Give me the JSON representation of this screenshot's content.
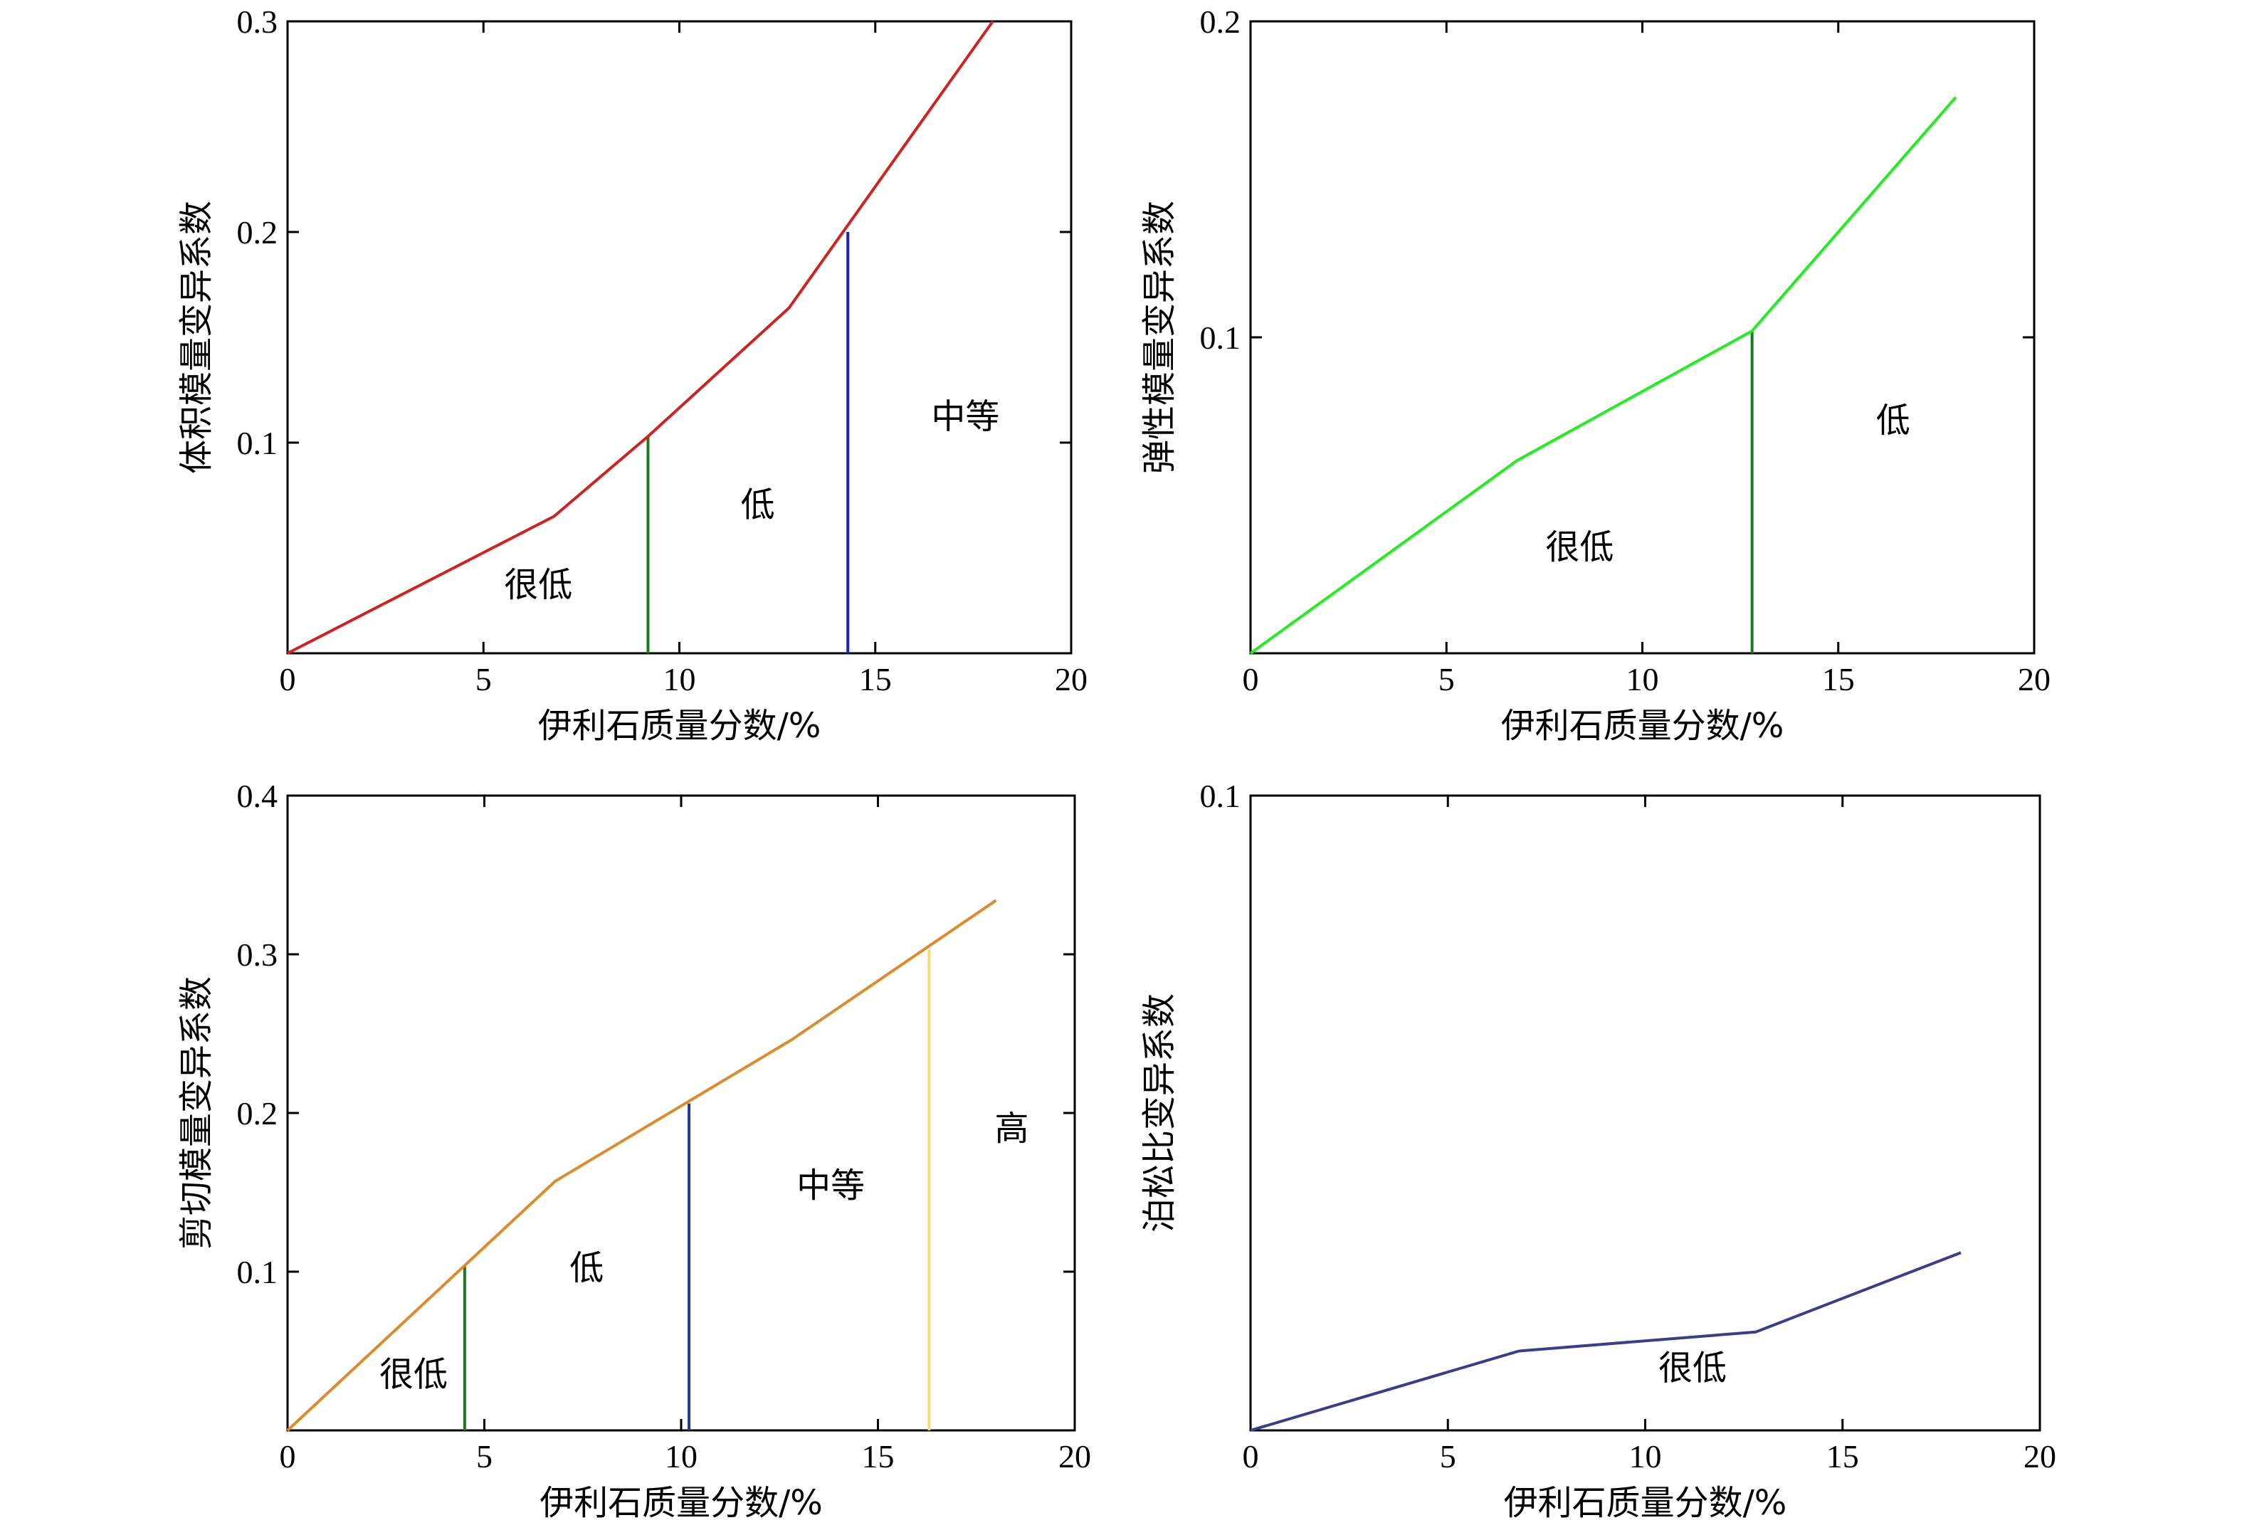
{
  "chart_data": [
    {
      "type": "line",
      "xlabel": "伊利石质量分数/%",
      "ylabel": "体积模量变异系数",
      "xlim": [
        0,
        20
      ],
      "ylim": [
        0,
        0.3
      ],
      "xticks": [
        0,
        5,
        10,
        15,
        20
      ],
      "xtick_labels": [
        "0",
        "5",
        "10",
        "15",
        "20"
      ],
      "yticks": [
        0.1,
        0.2,
        0.3
      ],
      "ytick_labels": [
        "0.1",
        "0.2",
        "0.3"
      ],
      "series": [
        {
          "color": "#d42020",
          "x": [
            0,
            6.8,
            9.2,
            12.8,
            18
          ],
          "y": [
            0,
            0.065,
            0.103,
            0.164,
            0.3
          ]
        }
      ],
      "dividers": [
        {
          "x": 9.2,
          "y_top": 0.103,
          "color": "#1c7a1c"
        },
        {
          "x": 14.3,
          "y_top": 0.2,
          "color": "#2020c8"
        }
      ],
      "regions": [
        {
          "label": "很低",
          "x": 6.4,
          "y": 0.027
        },
        {
          "label": "低",
          "x": 12.0,
          "y": 0.065
        },
        {
          "label": "中等",
          "x": 17.3,
          "y": 0.107
        }
      ]
    },
    {
      "type": "line",
      "xlabel": "伊利石质量分数/%",
      "ylabel": "弹性模量变异系数",
      "xlim": [
        0,
        20
      ],
      "ylim": [
        0,
        0.2
      ],
      "xticks": [
        0,
        5,
        10,
        15,
        20
      ],
      "xtick_labels": [
        "0",
        "5",
        "10",
        "15",
        "20"
      ],
      "yticks": [
        0.1,
        0.2
      ],
      "ytick_labels": [
        "0.1",
        "0.2"
      ],
      "series": [
        {
          "color": "#22ee22",
          "x": [
            0,
            6.8,
            12.8,
            18
          ],
          "y": [
            0,
            0.061,
            0.102,
            0.176
          ]
        }
      ],
      "dividers": [
        {
          "x": 12.8,
          "y_top": 0.102,
          "color": "#1c7a1c"
        }
      ],
      "regions": [
        {
          "label": "很低",
          "x": 8.4,
          "y": 0.03
        },
        {
          "label": "低",
          "x": 16.4,
          "y": 0.07
        }
      ]
    },
    {
      "type": "line",
      "xlabel": "伊利石质量分数/%",
      "ylabel": "剪切模量变异系数",
      "xlim": [
        0,
        20
      ],
      "ylim": [
        0,
        0.4
      ],
      "xticks": [
        0,
        5,
        10,
        15,
        20
      ],
      "xtick_labels": [
        "0",
        "5",
        "10",
        "15",
        "20"
      ],
      "yticks": [
        0.1,
        0.2,
        0.3,
        0.4
      ],
      "ytick_labels": [
        "0.1",
        "0.2",
        "0.3",
        "0.4"
      ],
      "series": [
        {
          "color": "#e08a2c",
          "x": [
            0,
            6.8,
            12.8,
            18
          ],
          "y": [
            0,
            0.157,
            0.246,
            0.334
          ]
        }
      ],
      "dividers": [
        {
          "x": 4.5,
          "y_top": 0.104,
          "color": "#1c7a1c"
        },
        {
          "x": 10.2,
          "y_top": 0.206,
          "color": "#1c3c8c"
        },
        {
          "x": 16.3,
          "y_top": 0.303,
          "color": "#f2dc7a"
        }
      ],
      "regions": [
        {
          "label": "很低",
          "x": 3.2,
          "y": 0.028
        },
        {
          "label": "低",
          "x": 7.6,
          "y": 0.095
        },
        {
          "label": "中等",
          "x": 13.8,
          "y": 0.147
        },
        {
          "label": "高",
          "x": 18.4,
          "y": 0.183
        }
      ]
    },
    {
      "type": "line",
      "xlabel": "伊利石质量分数/%",
      "ylabel": "泊松比变异系数",
      "xlim": [
        0,
        20
      ],
      "ylim": [
        0,
        0.1
      ],
      "xticks": [
        0,
        5,
        10,
        15,
        20
      ],
      "xtick_labels": [
        "0",
        "5",
        "10",
        "15",
        "20"
      ],
      "yticks": [
        0.1
      ],
      "ytick_labels": [
        "0.1"
      ],
      "series": [
        {
          "color": "#3c3c8c",
          "x": [
            0,
            6.8,
            12.8,
            18
          ],
          "y": [
            0,
            0.0125,
            0.0155,
            0.028
          ]
        }
      ],
      "dividers": [],
      "regions": [
        {
          "label": "很低",
          "x": 11.2,
          "y": 0.008
        }
      ]
    }
  ]
}
